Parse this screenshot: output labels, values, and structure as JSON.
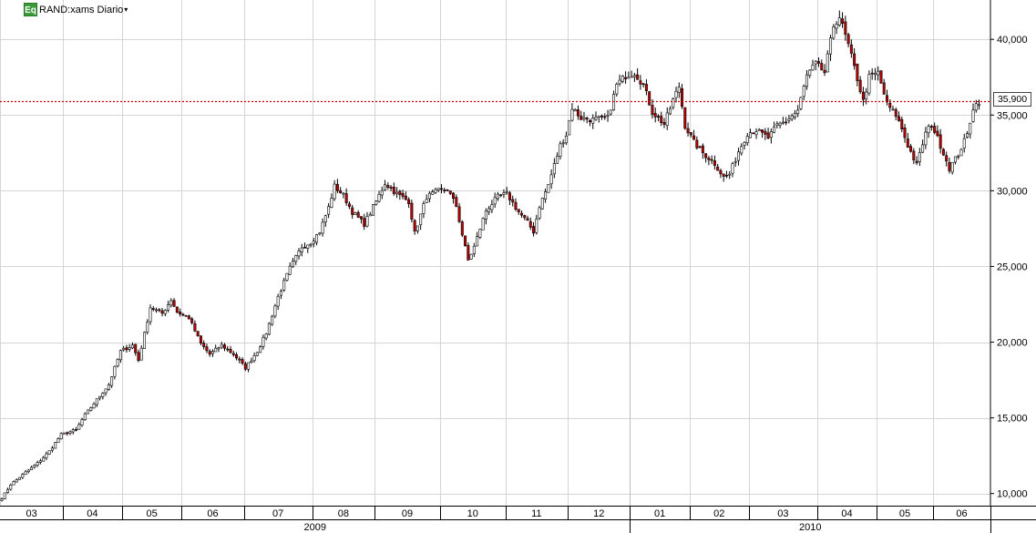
{
  "header": {
    "badge": "Eq",
    "symbol": "RAND:xams Diario",
    "dropdown_icon": "caret-down-icon"
  },
  "last_price_label": "35,900",
  "colors": {
    "up_candle": "#ffffff",
    "down_candle": "#c00000",
    "reference_line": "#cc0000",
    "grid": "#d4d4d4",
    "badge": "#3a9a3a"
  },
  "chart_data": {
    "type": "candlestick",
    "title": "",
    "ylim": [
      9200,
      42600
    ],
    "y_ticks": [
      {
        "value": 10000,
        "label": "10,000"
      },
      {
        "value": 15000,
        "label": "15,000"
      },
      {
        "value": 20000,
        "label": "20,000"
      },
      {
        "value": 25000,
        "label": "25,000"
      },
      {
        "value": 30000,
        "label": "30,000"
      },
      {
        "value": 35000,
        "label": "35,000"
      },
      {
        "value": 40000,
        "label": "40,000"
      }
    ],
    "reference_line": {
      "value": 35900,
      "style": "dotted"
    },
    "months": [
      {
        "label": "03",
        "index": 0
      },
      {
        "label": "04",
        "index": 21
      },
      {
        "label": "05",
        "index": 41
      },
      {
        "label": "06",
        "index": 61
      },
      {
        "label": "07",
        "index": 82
      },
      {
        "label": "08",
        "index": 105
      },
      {
        "label": "09",
        "index": 126
      },
      {
        "label": "10",
        "index": 148
      },
      {
        "label": "11",
        "index": 170
      },
      {
        "label": "12",
        "index": 191
      },
      {
        "label": "01",
        "index": 212
      },
      {
        "label": "02",
        "index": 232
      },
      {
        "label": "03",
        "index": 252
      },
      {
        "label": "04",
        "index": 275
      },
      {
        "label": "05",
        "index": 295
      },
      {
        "label": "06",
        "index": 314
      }
    ],
    "years": [
      {
        "label": "2009",
        "start_index": 0,
        "end_index": 211
      },
      {
        "label": "2010",
        "start_index": 212,
        "end_index": 330
      }
    ],
    "n_bars": 330,
    "anchors": [
      [
        0,
        9700
      ],
      [
        3,
        10600
      ],
      [
        8,
        11400
      ],
      [
        12,
        12000
      ],
      [
        16,
        12800
      ],
      [
        20,
        13900
      ],
      [
        25,
        14200
      ],
      [
        28,
        15200
      ],
      [
        32,
        16200
      ],
      [
        36,
        17200
      ],
      [
        40,
        19400
      ],
      [
        44,
        19800
      ],
      [
        46,
        18800
      ],
      [
        50,
        22300
      ],
      [
        54,
        21900
      ],
      [
        57,
        22800
      ],
      [
        59,
        22000
      ],
      [
        63,
        21600
      ],
      [
        67,
        19900
      ],
      [
        70,
        19200
      ],
      [
        74,
        19800
      ],
      [
        78,
        19200
      ],
      [
        82,
        18300
      ],
      [
        86,
        19400
      ],
      [
        89,
        20600
      ],
      [
        93,
        23000
      ],
      [
        97,
        24900
      ],
      [
        101,
        26300
      ],
      [
        104,
        26600
      ],
      [
        107,
        27300
      ],
      [
        110,
        28900
      ],
      [
        112,
        30300
      ],
      [
        115,
        29700
      ],
      [
        118,
        28600
      ],
      [
        122,
        27800
      ],
      [
        126,
        29300
      ],
      [
        129,
        30500
      ],
      [
        133,
        29800
      ],
      [
        137,
        29300
      ],
      [
        139,
        27200
      ],
      [
        143,
        29600
      ],
      [
        147,
        30000
      ],
      [
        150,
        30100
      ],
      [
        153,
        29000
      ],
      [
        155,
        27100
      ],
      [
        157,
        25400
      ],
      [
        159,
        26300
      ],
      [
        163,
        28700
      ],
      [
        167,
        29600
      ],
      [
        170,
        29800
      ],
      [
        174,
        28600
      ],
      [
        177,
        27900
      ],
      [
        179,
        27300
      ],
      [
        181,
        29000
      ],
      [
        184,
        30400
      ],
      [
        188,
        33000
      ],
      [
        190,
        33700
      ],
      [
        192,
        35500
      ],
      [
        195,
        34800
      ],
      [
        199,
        34700
      ],
      [
        204,
        34800
      ],
      [
        207,
        37000
      ],
      [
        210,
        37600
      ],
      [
        213,
        37800
      ],
      [
        216,
        37000
      ],
      [
        219,
        35200
      ],
      [
        223,
        34400
      ],
      [
        226,
        36000
      ],
      [
        228,
        36900
      ],
      [
        230,
        34300
      ],
      [
        233,
        33200
      ],
      [
        236,
        32500
      ],
      [
        240,
        31800
      ],
      [
        243,
        30900
      ],
      [
        245,
        31100
      ],
      [
        248,
        32600
      ],
      [
        251,
        33800
      ],
      [
        254,
        34000
      ],
      [
        258,
        33500
      ],
      [
        261,
        34300
      ],
      [
        264,
        34600
      ],
      [
        268,
        35300
      ],
      [
        271,
        37600
      ],
      [
        274,
        38400
      ],
      [
        277,
        37800
      ],
      [
        280,
        40900
      ],
      [
        282,
        41500
      ],
      [
        285,
        39600
      ],
      [
        288,
        37400
      ],
      [
        290,
        35900
      ],
      [
        292,
        37500
      ],
      [
        295,
        37800
      ],
      [
        298,
        35700
      ],
      [
        301,
        35000
      ],
      [
        303,
        34100
      ],
      [
        305,
        33000
      ],
      [
        308,
        31700
      ],
      [
        311,
        33800
      ],
      [
        313,
        34400
      ],
      [
        316,
        33000
      ],
      [
        319,
        31500
      ],
      [
        322,
        32400
      ],
      [
        325,
        33700
      ],
      [
        327,
        35500
      ],
      [
        329,
        35900
      ]
    ]
  },
  "time_axis": {
    "month_labels": [
      "03",
      "04",
      "05",
      "06",
      "07",
      "08",
      "09",
      "10",
      "11",
      "12",
      "01",
      "02",
      "03",
      "04",
      "05",
      "06"
    ],
    "year_labels": [
      "2009",
      "2010"
    ]
  }
}
